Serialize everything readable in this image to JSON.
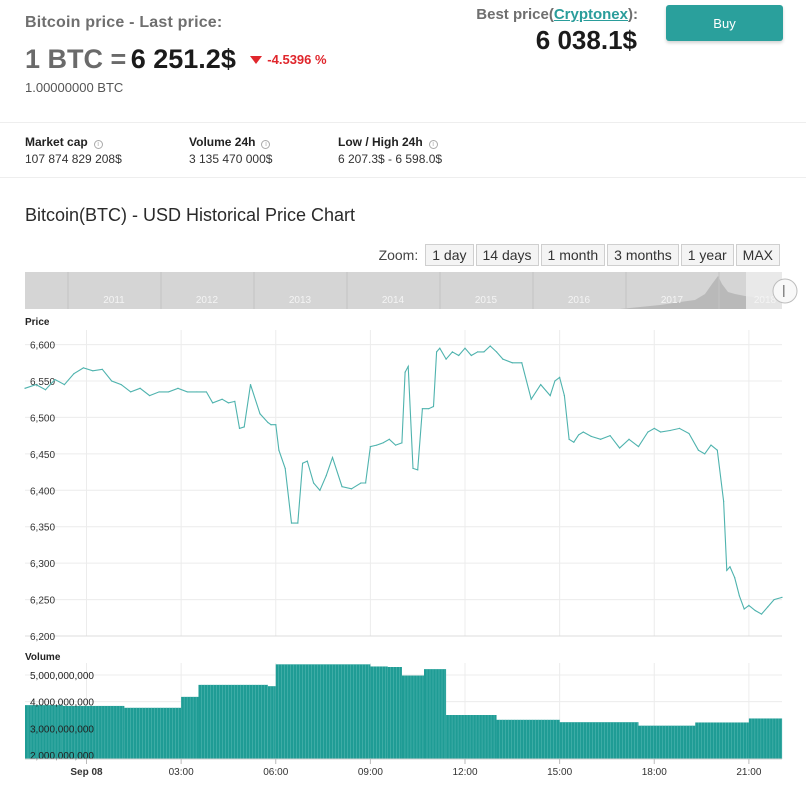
{
  "header": {
    "last_price_label": "Bitcoin price - Last price:",
    "price_prefix": "1 BTC =",
    "price_value": "6 251.2$",
    "change": "-4.5396 %",
    "btc_amount": "1.00000000 BTC",
    "best_price_label": "Best price(",
    "best_price_source": "Cryptonex",
    "best_price_suffix": "):",
    "best_price_value": "6 038.1$",
    "buy_label": "Buy"
  },
  "stats": [
    {
      "label": "Market cap",
      "value": "107 874 829 208$"
    },
    {
      "label": "Volume 24h",
      "value": "3 135 470 000$"
    },
    {
      "label": "Low / High 24h",
      "value": "6 207.3$ - 6 598.0$"
    }
  ],
  "chart_title": "Bitcoin(BTC) - USD Historical Price Chart",
  "zoom": {
    "label": "Zoom:",
    "buttons": [
      "1 day",
      "14 days",
      "1 month",
      "3 months",
      "1 year",
      "MAX"
    ]
  },
  "navigator": {
    "years": [
      "2011",
      "2012",
      "2013",
      "2014",
      "2015",
      "2016",
      "2017",
      "2018"
    ]
  },
  "colors": {
    "accent": "#2aa09c",
    "down": "#e0262c",
    "line": "#4fb3ae",
    "volume": "#1f9c95"
  },
  "chart_data": [
    {
      "type": "line",
      "title": "",
      "ylabel": "Price",
      "ylim": [
        6200,
        6620
      ],
      "yticks": [
        6200,
        6250,
        6300,
        6350,
        6400,
        6450,
        6500,
        6550,
        6600
      ],
      "ytick_labels": [
        "6,200",
        "6,250",
        "6,300",
        "6,350",
        "6,400",
        "6,450",
        "6,500",
        "6,550",
        "6,600"
      ],
      "xlabel": "",
      "xticks": [
        0,
        3,
        6,
        9,
        12,
        15,
        18,
        21
      ],
      "xtick_labels": [
        "Sep 08",
        "03:00",
        "06:00",
        "09:00",
        "12:00",
        "15:00",
        "18:00",
        "21:00"
      ],
      "xlim": [
        -1.95,
        22.05
      ],
      "grid": true,
      "x": [
        -1.95,
        -1.6,
        -1.3,
        -1.0,
        -0.7,
        -0.4,
        -0.1,
        0.2,
        0.5,
        0.8,
        1.1,
        1.4,
        1.7,
        2.0,
        2.3,
        2.6,
        2.9,
        3.2,
        3.5,
        3.8,
        4.0,
        4.3,
        4.5,
        4.7,
        4.85,
        5.0,
        5.2,
        5.5,
        5.75,
        5.85,
        6.0,
        6.1,
        6.3,
        6.5,
        6.7,
        6.85,
        7.0,
        7.2,
        7.4,
        7.6,
        7.8,
        8.1,
        8.4,
        8.7,
        8.85,
        9.0,
        9.2,
        9.4,
        9.6,
        9.8,
        10.0,
        10.1,
        10.2,
        10.35,
        10.5,
        10.65,
        10.85,
        11.0,
        11.1,
        11.2,
        11.4,
        11.6,
        11.8,
        12.0,
        12.2,
        12.4,
        12.6,
        12.8,
        13.0,
        13.2,
        13.5,
        13.8,
        14.1,
        14.4,
        14.7,
        14.85,
        15.0,
        15.15,
        15.3,
        15.45,
        15.6,
        15.75,
        16.0,
        16.3,
        16.6,
        16.9,
        17.2,
        17.5,
        17.8,
        18.0,
        18.2,
        18.5,
        18.8,
        19.1,
        19.4,
        19.6,
        19.8,
        20.0,
        20.2,
        20.3,
        20.4,
        20.55,
        20.7,
        20.85,
        21.0,
        21.2,
        21.4,
        21.6,
        21.8,
        22.05
      ],
      "y": [
        6540,
        6545,
        6538,
        6552,
        6545,
        6560,
        6568,
        6564,
        6566,
        6550,
        6545,
        6535,
        6540,
        6530,
        6535,
        6535,
        6540,
        6535,
        6535,
        6535,
        6520,
        6525,
        6520,
        6522,
        6485,
        6487,
        6545,
        6505,
        6493,
        6490,
        6490,
        6455,
        6430,
        6355,
        6355,
        6437,
        6440,
        6410,
        6400,
        6420,
        6445,
        6405,
        6402,
        6410,
        6410,
        6460,
        6462,
        6465,
        6470,
        6462,
        6465,
        6562,
        6570,
        6430,
        6428,
        6512,
        6512,
        6515,
        6590,
        6595,
        6580,
        6590,
        6585,
        6595,
        6585,
        6590,
        6590,
        6598,
        6590,
        6580,
        6575,
        6575,
        6525,
        6545,
        6530,
        6550,
        6555,
        6530,
        6470,
        6466,
        6476,
        6480,
        6474,
        6470,
        6475,
        6458,
        6470,
        6460,
        6480,
        6485,
        6480,
        6482,
        6485,
        6478,
        6455,
        6450,
        6462,
        6455,
        6385,
        6290,
        6295,
        6280,
        6255,
        6237,
        6242,
        6235,
        6230,
        6240,
        6250,
        6253
      ]
    },
    {
      "type": "bar",
      "title": "",
      "ylabel": "Volume",
      "ylim": [
        1850000000,
        5450000000
      ],
      "yticks": [
        2000000000,
        3000000000,
        4000000000,
        5000000000
      ],
      "ytick_labels": [
        "2,000,000,000",
        "3,000,000,000",
        "4,000,000,000",
        "5,000,000,000"
      ],
      "segments": [
        {
          "x0": -1.95,
          "x1": -0.75,
          "value": 3870000000
        },
        {
          "x0": -0.75,
          "x1": 1.2,
          "value": 3840000000
        },
        {
          "x0": 1.2,
          "x1": 3.0,
          "value": 3770000000
        },
        {
          "x0": 3.0,
          "x1": 3.55,
          "value": 4180000000
        },
        {
          "x0": 3.55,
          "x1": 5.75,
          "value": 4630000000
        },
        {
          "x0": 5.75,
          "x1": 6.0,
          "value": 4580000000
        },
        {
          "x0": 6.0,
          "x1": 9.0,
          "value": 5400000000
        },
        {
          "x0": 9.0,
          "x1": 9.55,
          "value": 5320000000
        },
        {
          "x0": 9.55,
          "x1": 10.0,
          "value": 5300000000
        },
        {
          "x0": 10.0,
          "x1": 10.7,
          "value": 4980000000
        },
        {
          "x0": 10.7,
          "x1": 11.4,
          "value": 5220000000
        },
        {
          "x0": 11.4,
          "x1": 13.0,
          "value": 3500000000
        },
        {
          "x0": 13.0,
          "x1": 15.0,
          "value": 3320000000
        },
        {
          "x0": 15.0,
          "x1": 17.5,
          "value": 3230000000
        },
        {
          "x0": 17.5,
          "x1": 19.3,
          "value": 3100000000
        },
        {
          "x0": 19.3,
          "x1": 21.0,
          "value": 3220000000
        },
        {
          "x0": 21.0,
          "x1": 22.05,
          "value": 3370000000
        }
      ]
    }
  ]
}
